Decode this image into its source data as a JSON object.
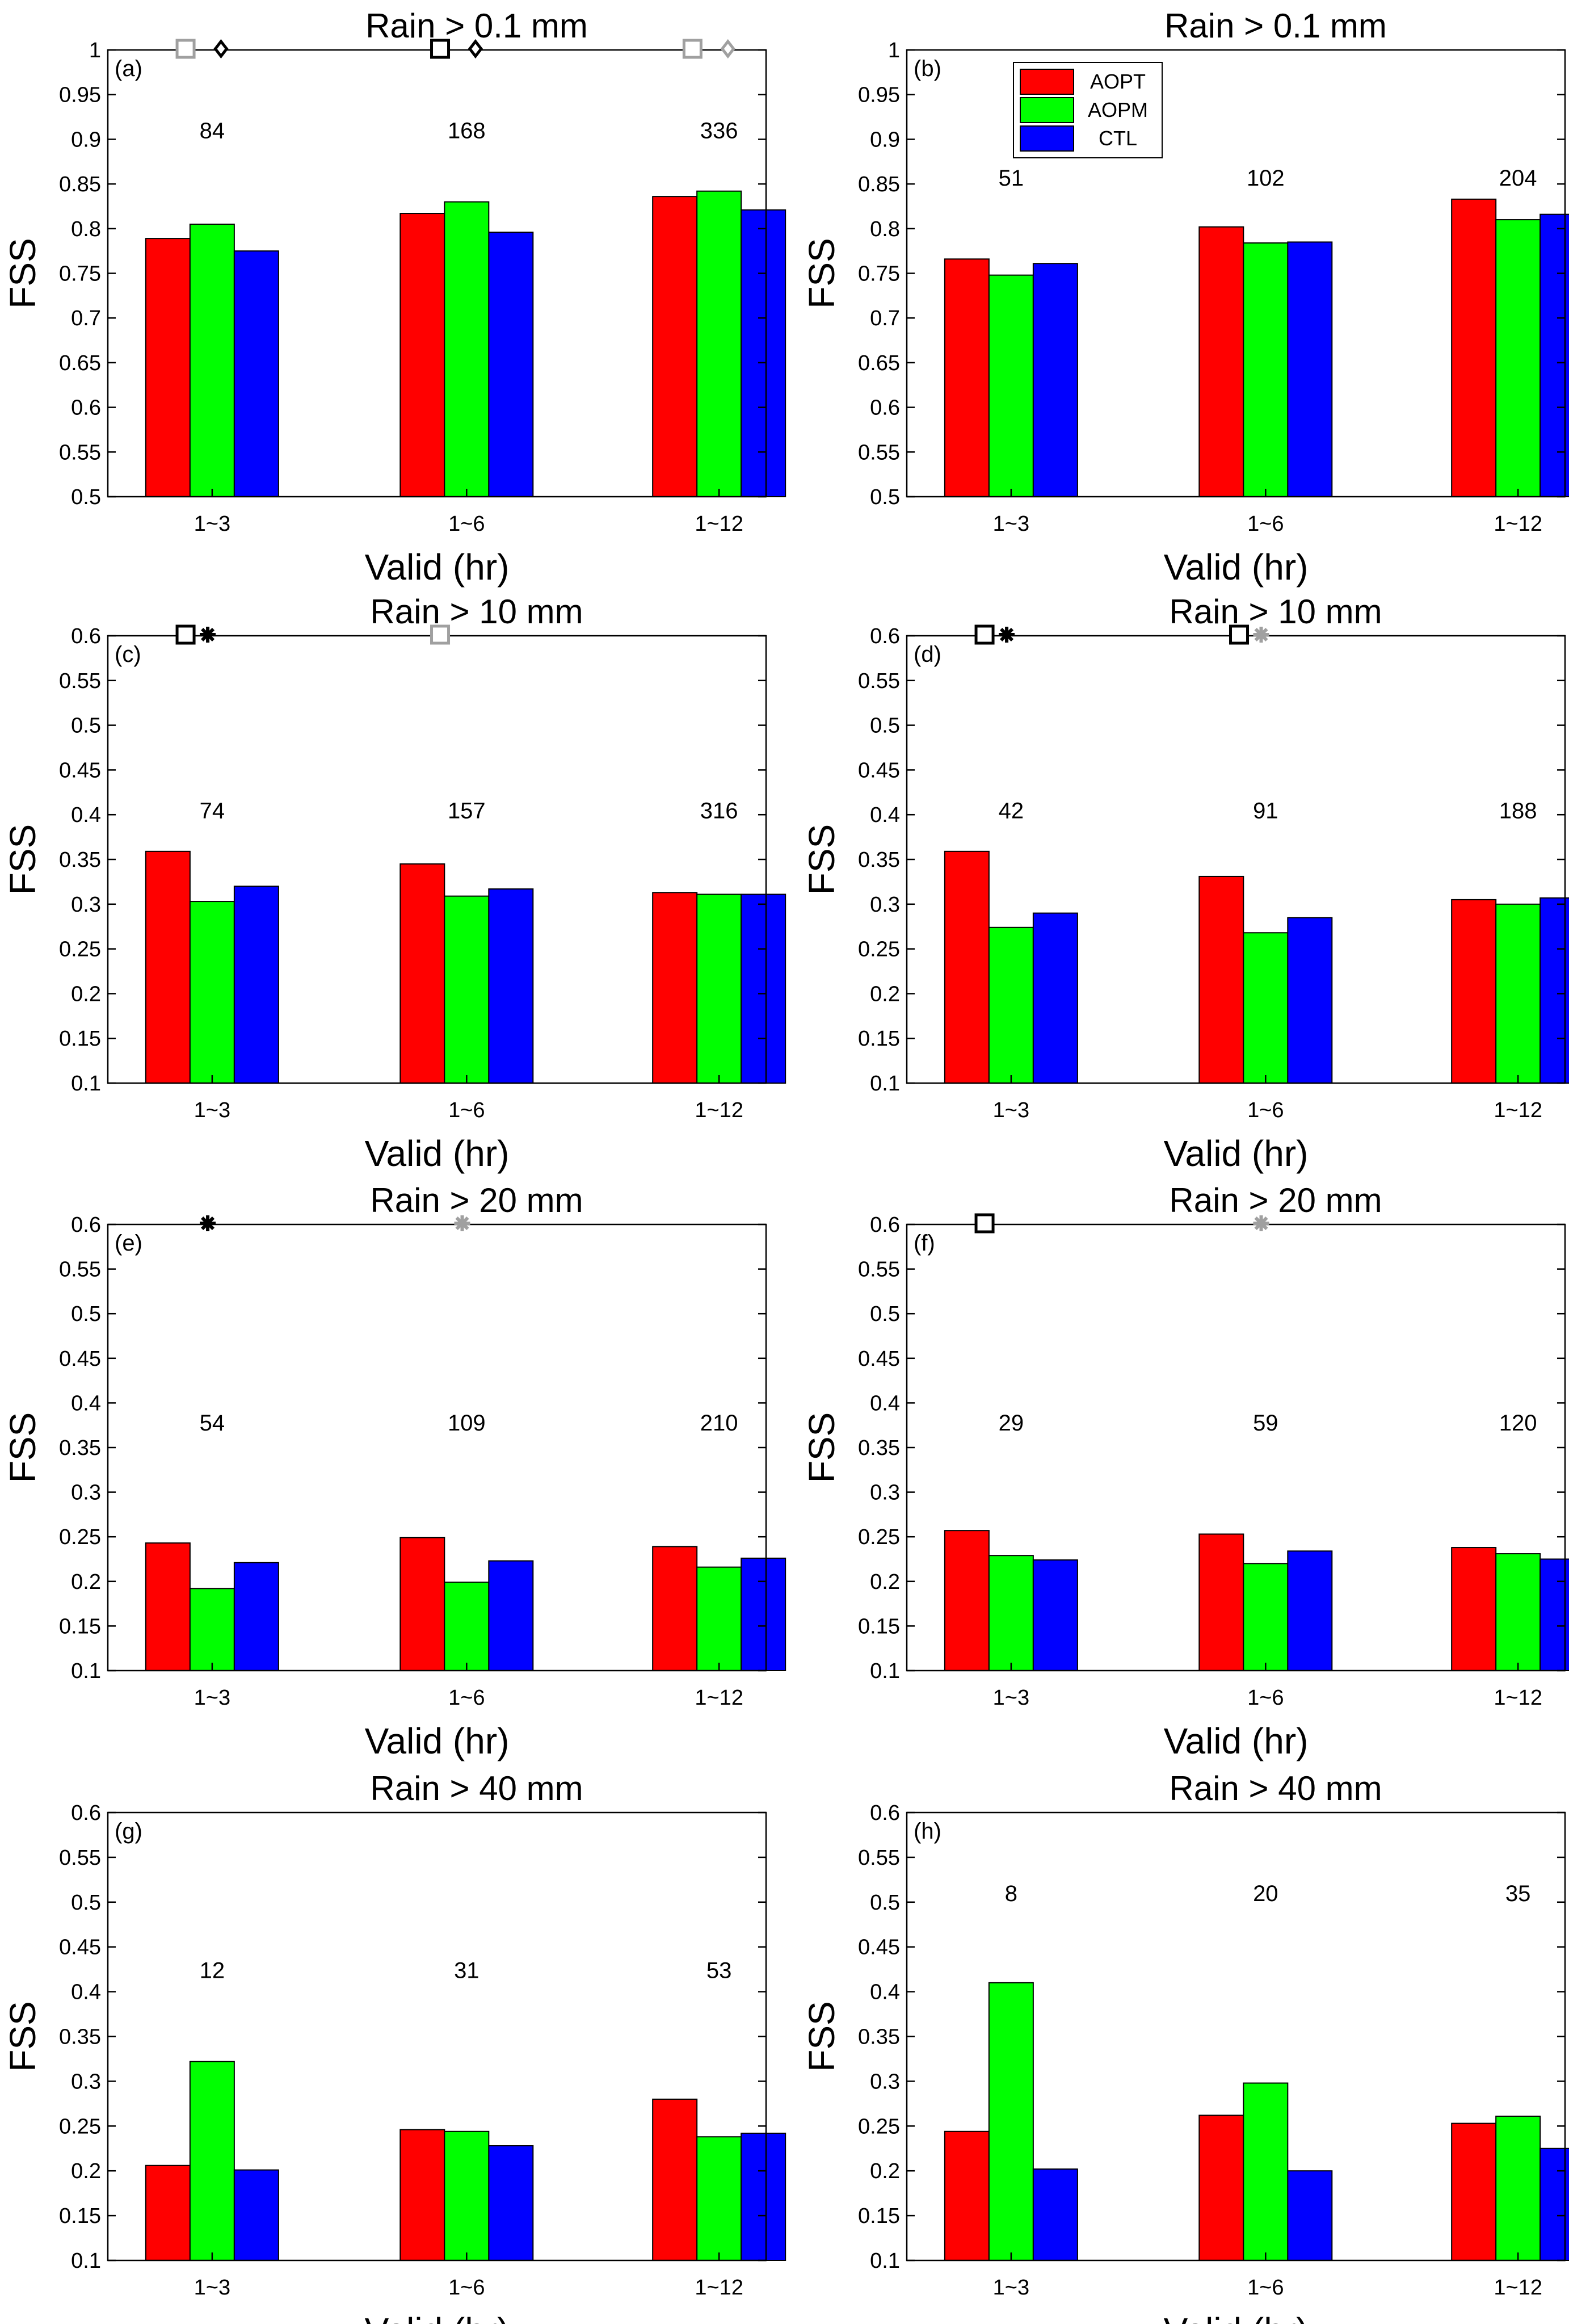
{
  "chart_data": [
    {
      "panel": "(a)",
      "type": "bar",
      "title": "Rain  > 0.1 mm",
      "xlabel": "Valid (hr)",
      "ylabel": "FSS",
      "ylim": [
        0.5,
        1
      ],
      "yticks": [
        "0.5",
        "0.55",
        "0.6",
        "0.65",
        "0.7",
        "0.75",
        "0.8",
        "0.85",
        "0.9",
        "0.95",
        "1"
      ],
      "categories": [
        "1~3",
        "1~6",
        "1~12"
      ],
      "series": [
        {
          "name": "AOPT",
          "color": "#ff0000",
          "values": [
            0.789,
            0.817,
            0.836
          ]
        },
        {
          "name": "AOPM",
          "color": "#00ff00",
          "values": [
            0.805,
            0.83,
            0.842
          ]
        },
        {
          "name": "CTL",
          "color": "#0000ff",
          "values": [
            0.775,
            0.796,
            0.821
          ]
        }
      ],
      "counts": [
        "84",
        "168",
        "336"
      ],
      "count_y": 0.91,
      "markers": [
        {
          "shape": "square",
          "color": "#a0a0a0",
          "group": 0,
          "offset": -0.3
        },
        {
          "shape": "diamond",
          "color": "#000000",
          "group": 0,
          "offset": 0.1
        },
        {
          "shape": "square",
          "color": "#000000",
          "group": 1,
          "offset": -0.3
        },
        {
          "shape": "diamond",
          "color": "#000000",
          "group": 1,
          "offset": 0.1
        },
        {
          "shape": "square",
          "color": "#a0a0a0",
          "group": 2,
          "offset": -0.3
        },
        {
          "shape": "diamond",
          "color": "#a0a0a0",
          "group": 2,
          "offset": 0.1
        }
      ]
    },
    {
      "panel": "(b)",
      "type": "bar",
      "title": "Rain  > 0.1 mm",
      "xlabel": "Valid (hr)",
      "ylabel": "FSS",
      "ylim": [
        0.5,
        1
      ],
      "yticks": [
        "0.5",
        "0.55",
        "0.6",
        "0.65",
        "0.7",
        "0.75",
        "0.8",
        "0.85",
        "0.9",
        "0.95",
        "1"
      ],
      "categories": [
        "1~3",
        "1~6",
        "1~12"
      ],
      "series": [
        {
          "name": "AOPT",
          "color": "#ff0000",
          "values": [
            0.766,
            0.802,
            0.833
          ]
        },
        {
          "name": "AOPM",
          "color": "#00ff00",
          "values": [
            0.748,
            0.784,
            0.81
          ]
        },
        {
          "name": "CTL",
          "color": "#0000ff",
          "values": [
            0.761,
            0.785,
            0.816
          ]
        }
      ],
      "counts": [
        "51",
        "102",
        "204"
      ],
      "count_y": 0.857,
      "legend": {
        "position": "top-left",
        "entries": [
          "AOPT",
          "AOPM",
          "CTL"
        ]
      },
      "markers": []
    },
    {
      "panel": "(c)",
      "type": "bar",
      "title": "Rain  > 10 mm",
      "xlabel": "Valid (hr)",
      "ylabel": "FSS",
      "ylim": [
        0.1,
        0.6
      ],
      "yticks": [
        "0.1",
        "0.15",
        "0.2",
        "0.25",
        "0.3",
        "0.35",
        "0.4",
        "0.45",
        "0.5",
        "0.55",
        "0.6"
      ],
      "categories": [
        "1~3",
        "1~6",
        "1~12"
      ],
      "series": [
        {
          "name": "AOPT",
          "color": "#ff0000",
          "values": [
            0.359,
            0.345,
            0.313
          ]
        },
        {
          "name": "AOPM",
          "color": "#00ff00",
          "values": [
            0.303,
            0.309,
            0.311
          ]
        },
        {
          "name": "CTL",
          "color": "#0000ff",
          "values": [
            0.32,
            0.317,
            0.311
          ]
        }
      ],
      "counts": [
        "74",
        "157",
        "316"
      ],
      "count_y": 0.405,
      "markers": [
        {
          "shape": "square",
          "color": "#000000",
          "group": 0,
          "offset": -0.3
        },
        {
          "shape": "star",
          "color": "#000000",
          "group": 0,
          "offset": -0.05
        },
        {
          "shape": "square",
          "color": "#a0a0a0",
          "group": 1,
          "offset": -0.3
        }
      ]
    },
    {
      "panel": "(d)",
      "type": "bar",
      "title": "Rain  > 10 mm",
      "xlabel": "Valid (hr)",
      "ylabel": "FSS",
      "ylim": [
        0.1,
        0.6
      ],
      "yticks": [
        "0.1",
        "0.15",
        "0.2",
        "0.25",
        "0.3",
        "0.35",
        "0.4",
        "0.45",
        "0.5",
        "0.55",
        "0.6"
      ],
      "categories": [
        "1~3",
        "1~6",
        "1~12"
      ],
      "series": [
        {
          "name": "AOPT",
          "color": "#ff0000",
          "values": [
            0.359,
            0.331,
            0.305
          ]
        },
        {
          "name": "AOPM",
          "color": "#00ff00",
          "values": [
            0.274,
            0.268,
            0.3
          ]
        },
        {
          "name": "CTL",
          "color": "#0000ff",
          "values": [
            0.29,
            0.285,
            0.307
          ]
        }
      ],
      "counts": [
        "42",
        "91",
        "188"
      ],
      "count_y": 0.405,
      "markers": [
        {
          "shape": "square",
          "color": "#000000",
          "group": 0,
          "offset": -0.3
        },
        {
          "shape": "star",
          "color": "#000000",
          "group": 0,
          "offset": -0.05
        },
        {
          "shape": "square",
          "color": "#000000",
          "group": 1,
          "offset": -0.3
        },
        {
          "shape": "star",
          "color": "#a0a0a0",
          "group": 1,
          "offset": -0.05
        }
      ]
    },
    {
      "panel": "(e)",
      "type": "bar",
      "title": "Rain  > 20 mm",
      "xlabel": "Valid (hr)",
      "ylabel": "FSS",
      "ylim": [
        0.1,
        0.6
      ],
      "yticks": [
        "0.1",
        "0.15",
        "0.2",
        "0.25",
        "0.3",
        "0.35",
        "0.4",
        "0.45",
        "0.5",
        "0.55",
        "0.6"
      ],
      "categories": [
        "1~3",
        "1~6",
        "1~12"
      ],
      "series": [
        {
          "name": "AOPT",
          "color": "#ff0000",
          "values": [
            0.243,
            0.249,
            0.239
          ]
        },
        {
          "name": "AOPM",
          "color": "#00ff00",
          "values": [
            0.192,
            0.199,
            0.216
          ]
        },
        {
          "name": "CTL",
          "color": "#0000ff",
          "values": [
            0.221,
            0.223,
            0.226
          ]
        }
      ],
      "counts": [
        "54",
        "109",
        "210"
      ],
      "count_y": 0.378,
      "markers": [
        {
          "shape": "star",
          "color": "#000000",
          "group": 0,
          "offset": -0.05
        },
        {
          "shape": "star",
          "color": "#a0a0a0",
          "group": 1,
          "offset": -0.05
        }
      ]
    },
    {
      "panel": "(f)",
      "type": "bar",
      "title": "Rain  > 20 mm",
      "xlabel": "Valid (hr)",
      "ylabel": "FSS",
      "ylim": [
        0.1,
        0.6
      ],
      "yticks": [
        "0.1",
        "0.15",
        "0.2",
        "0.25",
        "0.3",
        "0.35",
        "0.4",
        "0.45",
        "0.5",
        "0.55",
        "0.6"
      ],
      "categories": [
        "1~3",
        "1~6",
        "1~12"
      ],
      "series": [
        {
          "name": "AOPT",
          "color": "#ff0000",
          "values": [
            0.257,
            0.253,
            0.238
          ]
        },
        {
          "name": "AOPM",
          "color": "#00ff00",
          "values": [
            0.229,
            0.22,
            0.231
          ]
        },
        {
          "name": "CTL",
          "color": "#0000ff",
          "values": [
            0.224,
            0.234,
            0.225
          ]
        }
      ],
      "counts": [
        "29",
        "59",
        "120"
      ],
      "count_y": 0.378,
      "markers": [
        {
          "shape": "square",
          "color": "#000000",
          "group": 0,
          "offset": -0.3
        },
        {
          "shape": "star",
          "color": "#a0a0a0",
          "group": 1,
          "offset": -0.05
        }
      ]
    },
    {
      "panel": "(g)",
      "type": "bar",
      "title": "Rain  > 40 mm",
      "xlabel": "Valid (hr)",
      "ylabel": "FSS",
      "ylim": [
        0.1,
        0.6
      ],
      "yticks": [
        "0.1",
        "0.15",
        "0.2",
        "0.25",
        "0.3",
        "0.35",
        "0.4",
        "0.45",
        "0.5",
        "0.55",
        "0.6"
      ],
      "categories": [
        "1~3",
        "1~6",
        "1~12"
      ],
      "series": [
        {
          "name": "AOPT",
          "color": "#ff0000",
          "values": [
            0.206,
            0.246,
            0.28
          ]
        },
        {
          "name": "AOPM",
          "color": "#00ff00",
          "values": [
            0.322,
            0.244,
            0.238
          ]
        },
        {
          "name": "CTL",
          "color": "#0000ff",
          "values": [
            0.201,
            0.228,
            0.242
          ]
        }
      ],
      "counts": [
        "12",
        "31",
        "53"
      ],
      "count_y": 0.424,
      "markers": []
    },
    {
      "panel": "(h)",
      "type": "bar",
      "title": "Rain  > 40 mm",
      "xlabel": "Valid (hr)",
      "ylabel": "FSS",
      "ylim": [
        0.1,
        0.6
      ],
      "yticks": [
        "0.1",
        "0.15",
        "0.2",
        "0.25",
        "0.3",
        "0.35",
        "0.4",
        "0.45",
        "0.5",
        "0.55",
        "0.6"
      ],
      "categories": [
        "1~3",
        "1~6",
        "1~12"
      ],
      "series": [
        {
          "name": "AOPT",
          "color": "#ff0000",
          "values": [
            0.244,
            0.262,
            0.253
          ]
        },
        {
          "name": "AOPM",
          "color": "#00ff00",
          "values": [
            0.41,
            0.298,
            0.261
          ]
        },
        {
          "name": "CTL",
          "color": "#0000ff",
          "values": [
            0.202,
            0.2,
            0.225
          ]
        }
      ],
      "counts": [
        "8",
        "20",
        "35"
      ],
      "count_y": 0.51,
      "markers": []
    }
  ]
}
